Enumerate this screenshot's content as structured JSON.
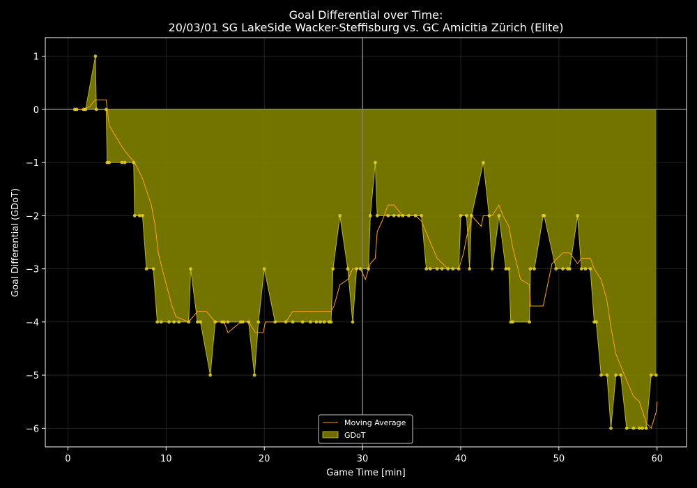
{
  "chart_data": {
    "type": "area",
    "title_line1": "Goal Differential over Time:",
    "title_line2": "20/03/01 SG LakeSide Wacker-Steffisburg  vs.  GC Amicitia Zürich (Elite)",
    "xlabel": "Game Time [min]",
    "ylabel": "Goal Differential (GDoT)",
    "xlim": [
      -2.3,
      63.0
    ],
    "ylim": [
      -6.35,
      1.35
    ],
    "xticks": [
      0,
      10,
      20,
      30,
      40,
      50,
      60
    ],
    "yticks": [
      1,
      0,
      -1,
      -2,
      -3,
      -4,
      -5,
      -6
    ],
    "grid": true,
    "vline_x": 30,
    "hline_y": 0,
    "legend_position": "bottom-center",
    "colors": {
      "fill": "#808000",
      "marker": "#e6d21e",
      "moving_average": "#ffa500",
      "reference_line": "#808080"
    },
    "series": [
      {
        "name": "GDoT",
        "x": [
          0.7,
          0.9,
          1.6,
          1.8,
          2.8,
          2.9,
          3.9,
          4.0,
          4.2,
          5.5,
          5.8,
          6.7,
          6.8,
          7.3,
          7.6,
          8.0,
          8.7,
          9.1,
          9.5,
          10.3,
          10.8,
          11.3,
          12.3,
          12.5,
          13.2,
          13.5,
          14.5,
          15.0,
          15.7,
          15.9,
          16.3,
          17.6,
          17.8,
          18.4,
          19.0,
          19.4,
          20.0,
          21.1,
          22.2,
          22.9,
          23.9,
          24.7,
          25.3,
          25.7,
          26.1,
          26.6,
          26.8,
          27.0,
          27.7,
          28.5,
          29.0,
          29.4,
          29.8,
          30.6,
          30.8,
          31.3,
          31.5,
          32.6,
          33.2,
          33.7,
          34.1,
          34.7,
          35.4,
          36.0,
          36.5,
          36.9,
          37.6,
          38.1,
          38.7,
          39.2,
          39.8,
          40.0,
          40.6,
          40.9,
          41.1,
          42.3,
          42.9,
          43.2,
          43.9,
          44.6,
          44.9,
          45.1,
          45.3,
          47.0,
          47.1,
          47.5,
          48.4,
          48.5,
          49.7,
          50.4,
          50.9,
          51.1,
          51.9,
          52.3,
          52.7,
          53.2,
          53.6,
          53.8,
          54.3,
          54.9,
          55.3,
          55.8,
          56.3,
          56.9,
          57.6,
          58.2,
          58.5,
          58.9,
          59.4,
          59.9
        ],
        "y": [
          0,
          0,
          0,
          0,
          1,
          0,
          0,
          -1,
          -1,
          -1,
          -1,
          -1,
          -2,
          -2,
          -2,
          -3,
          -3,
          -4,
          -4,
          -4,
          -4,
          -4,
          -4,
          -3,
          -4,
          -4,
          -5,
          -4,
          -4,
          -4,
          -4,
          -4,
          -4,
          -4,
          -5,
          -4,
          -3,
          -4,
          -4,
          -4,
          -4,
          -4,
          -4,
          -4,
          -4,
          -4,
          -4,
          -3,
          -2,
          -3,
          -4,
          -3,
          -3,
          -3,
          -2,
          -1,
          -2,
          -2,
          -2,
          -2,
          -2,
          -2,
          -2,
          -2,
          -3,
          -3,
          -3,
          -3,
          -3,
          -3,
          -3,
          -2,
          -2,
          -3,
          -2,
          -1,
          -2,
          -3,
          -2,
          -3,
          -3,
          -4,
          -4,
          -4,
          -3,
          -3,
          -2,
          -2,
          -3,
          -3,
          -3,
          -3,
          -2,
          -3,
          -3,
          -3,
          -4,
          -4,
          -5,
          -5,
          -6,
          -5,
          -5,
          -6,
          -6,
          -6,
          -6,
          -6,
          -5,
          -5
        ]
      },
      {
        "name": "Moving Average",
        "x": [
          0.7,
          1.6,
          2.2,
          2.8,
          3.4,
          3.9,
          4.2,
          5.5,
          6.1,
          6.8,
          7.6,
          8.5,
          8.9,
          9.2,
          9.6,
          10.6,
          11.0,
          12.3,
          13.2,
          14.1,
          15.0,
          15.9,
          16.3,
          17.6,
          18.4,
          19.1,
          19.9,
          20.1,
          21.1,
          22.2,
          22.9,
          23.9,
          24.7,
          25.7,
          26.8,
          27.1,
          27.7,
          28.5,
          29.0,
          29.8,
          30.3,
          30.8,
          31.3,
          31.5,
          32.0,
          32.6,
          33.2,
          34.1,
          35.4,
          36.0,
          36.9,
          37.6,
          38.7,
          39.8,
          40.3,
          40.6,
          40.9,
          41.1,
          42.1,
          42.3,
          43.2,
          43.9,
          44.3,
          44.9,
          45.3,
          46.1,
          47.0,
          47.1,
          47.5,
          48.4,
          49.3,
          50.4,
          51.1,
          51.9,
          52.3,
          53.2,
          53.6,
          54.3,
          54.9,
          55.3,
          55.8,
          56.9,
          57.6,
          58.2,
          58.9,
          59.4,
          59.9,
          60.0
        ],
        "y": [
          0.0,
          0.0,
          0.05,
          0.18,
          0.18,
          0.18,
          -0.3,
          -0.7,
          -0.85,
          -1.0,
          -1.3,
          -1.8,
          -2.2,
          -2.7,
          -3.0,
          -3.7,
          -3.9,
          -4.0,
          -3.8,
          -3.8,
          -4.0,
          -4.0,
          -4.2,
          -4.0,
          -4.0,
          -4.2,
          -4.2,
          -4.0,
          -4.0,
          -4.0,
          -3.8,
          -3.8,
          -3.8,
          -3.8,
          -3.8,
          -3.7,
          -3.3,
          -3.2,
          -3.0,
          -3.0,
          -3.2,
          -2.9,
          -2.8,
          -2.3,
          -2.1,
          -1.8,
          -1.8,
          -2.0,
          -2.0,
          -2.1,
          -2.5,
          -2.8,
          -3.0,
          -3.0,
          -2.7,
          -2.4,
          -2.2,
          -2.0,
          -2.2,
          -2.0,
          -2.0,
          -1.8,
          -2.0,
          -2.2,
          -2.6,
          -3.2,
          -3.3,
          -3.7,
          -3.7,
          -3.7,
          -2.9,
          -2.7,
          -2.7,
          -2.9,
          -2.8,
          -2.8,
          -3.0,
          -3.2,
          -3.6,
          -4.1,
          -4.6,
          -5.1,
          -5.4,
          -5.5,
          -5.9,
          -6.0,
          -5.7,
          -5.5
        ]
      }
    ]
  }
}
